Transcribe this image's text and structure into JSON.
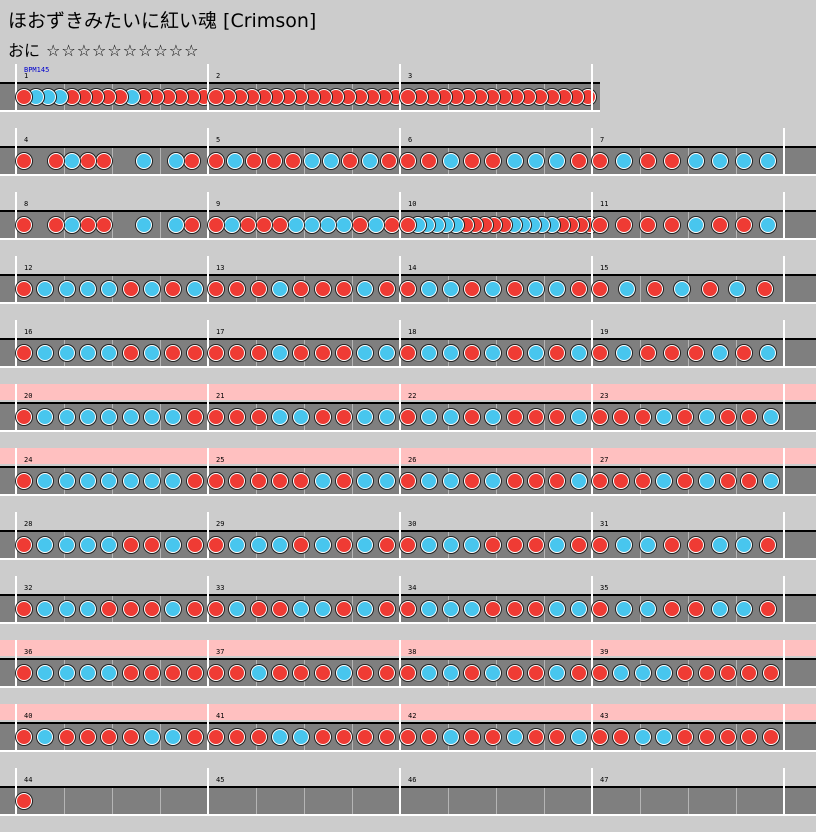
{
  "title": "ほおずきみたいに紅い魂 [Crimson]",
  "difficulty": {
    "label": "おに",
    "stars": "☆☆☆☆☆☆☆☆☆☆"
  },
  "bpm_label": "BPM145",
  "colors": {
    "background": "#cccccc",
    "lane": "#7f7f7f",
    "gogo": "#ffc0c0",
    "don": "#ef3b34",
    "ka": "#48c6ee"
  },
  "note_types": {
    "d": "don",
    "k": "ka"
  },
  "measures_per_row": 4,
  "beats_per_measure": 4,
  "rows": [
    {
      "measures": [
        1,
        2,
        3
      ],
      "gogo": false
    },
    {
      "measures": [
        4,
        5,
        6,
        7
      ],
      "gogo": false
    },
    {
      "measures": [
        8,
        9,
        10,
        11
      ],
      "gogo": false
    },
    {
      "measures": [
        12,
        13,
        14,
        15
      ],
      "gogo": false
    },
    {
      "measures": [
        16,
        17,
        18,
        19
      ],
      "gogo": false
    },
    {
      "measures": [
        20,
        21,
        22,
        23
      ],
      "gogo": true
    },
    {
      "measures": [
        24,
        25,
        26,
        27
      ],
      "gogo": true
    },
    {
      "measures": [
        28,
        29,
        30,
        31
      ],
      "gogo": false
    },
    {
      "measures": [
        32,
        33,
        34,
        35
      ],
      "gogo": false
    },
    {
      "measures": [
        36,
        37,
        38,
        39
      ],
      "gogo": true
    },
    {
      "measures": [
        40,
        41,
        42,
        43
      ],
      "gogo": true
    },
    {
      "measures": [
        44,
        45,
        46,
        47
      ],
      "gogo": false
    }
  ],
  "measures": {
    "1": "d0k0k0k0d0d0d0d0d0k0d0d0d0d0d0d0",
    "2": "d0d0d0d0d0d0d0d0d0d0d0d0d0d0d0d0",
    "3": "d0d0d0d0d0d0d0d0d0d0d0d0d0d0d0d0",
    "4": "d000d0k0d0d0000k000k0d00",
    "5": "d0k0d0d0d0k0k0d0k0d0",
    "6": "d0d0k0d0d0k0k0k0d0",
    "7": "d0k0d0d0k0k0k0k0",
    "8": "d000d0k0d0d0000k000k0d00",
    "9": "d0k0d0d0d0k0k0k0k0d0k0d0",
    "10": "dkkkkkdddddkkkkkdddd",
    "11": "d0d0d0d0k0d0d0k0",
    "12": "d0k0k0k0k0d0k0d0k0",
    "13": "d0d0d0k0d0d0d0k0d0",
    "14": "d0k0k0d0k0d0k0k0d0",
    "15": "d0k0d0k0d0k0d0",
    "16": "d0k0k0k0k0d0k0d0d0",
    "17": "d0d0d0k0d0d0d0k0k0",
    "18": "d0k0k0d0k0d0k0d0k0",
    "19": "d0k0d0d0d0k0d0k0",
    "20": "d0k0k0k0k0k0k0k0d0",
    "21": "d0d0d0k0k0d0d0k0k0",
    "22": "d0k0k0d0k0d0d0d0k0",
    "23": "d0d0d0k0d0k0d0d0k0",
    "24": "d0k0k0k0k0k0k0k0d0",
    "25": "d0d0d0d0d0k0d0k0k0",
    "26": "d0k0k0d0k0d0d0d0k0",
    "27": "d0d0d0k0d0k0d0d0k0",
    "28": "d0k0k0k0k0d0d0k0d0",
    "29": "d0k0k0k0d0k0d0k0d0",
    "30": "d0k0k0k0d0d0d0k0d0",
    "31": "d0k0k0d0d0k0k0d0",
    "32": "d0k0k0k0d0d0d0k0d0",
    "33": "d0k0d0d0k0k0d0k0d0",
    "34": "d0k0k0k0d0d0d0k0k0",
    "35": "d0k0k0d0d0k0k0d0",
    "36": "d0k0k0k0k0d0d0d0d0",
    "37": "d0d0k0d0d0d0k0d0d0",
    "38": "d0k0k0d0k0d0d0k0d0",
    "39": "d0k0k0k0d0d0d0d0d0",
    "40": "d0k0d0d0d0d0k0k0d0",
    "41": "d0d0d0k0k0d0d0d0d0",
    "42": "d0d0k0d0d0k0d0d0k0",
    "43": "d0d0k0k0d0d0d0d0d0",
    "44": "d",
    "45": "",
    "46": "",
    "47": ""
  }
}
